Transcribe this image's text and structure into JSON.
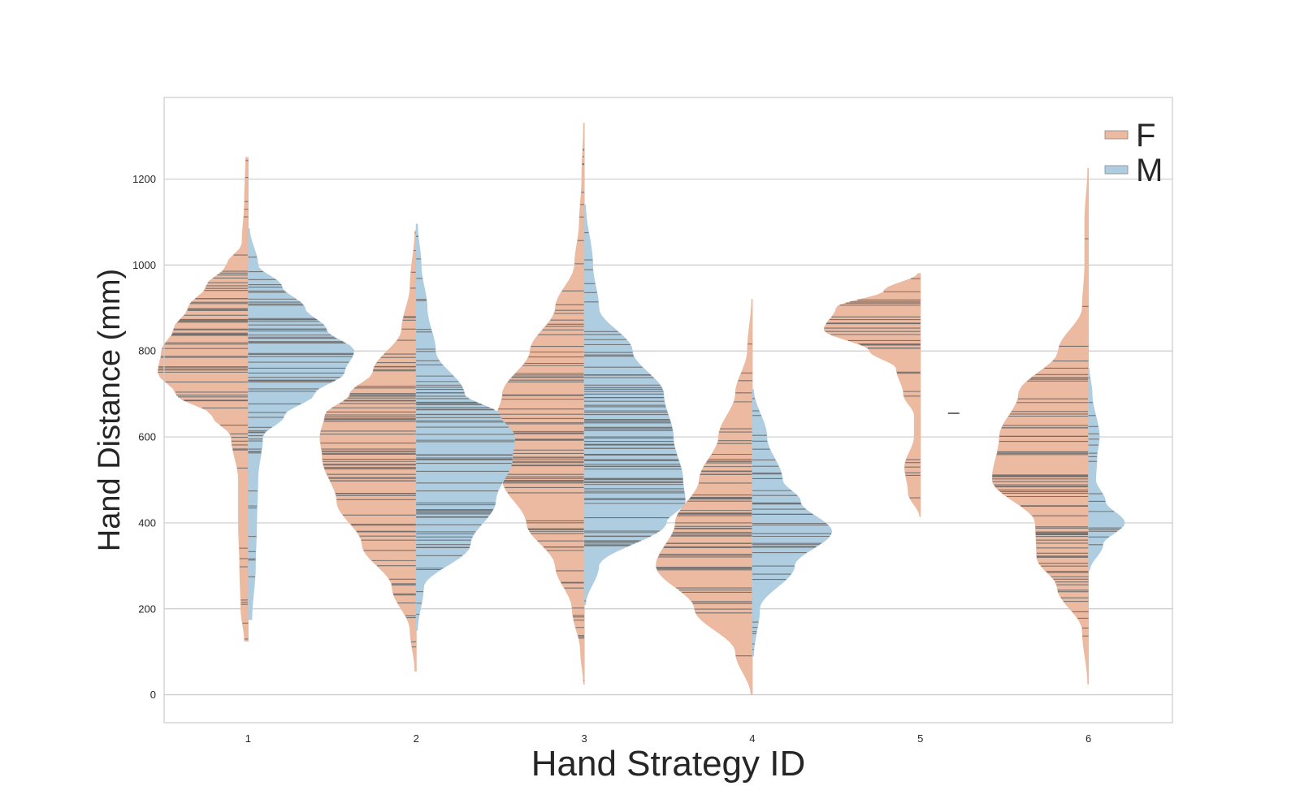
{
  "chart_data": {
    "type": "violin",
    "split": true,
    "inner": "stick",
    "xlabel": "Hand Strategy ID",
    "ylabel": "Hand Distance (mm)",
    "categories": [
      "1",
      "2",
      "3",
      "4",
      "5",
      "6"
    ],
    "y_ticks": [
      0,
      200,
      400,
      600,
      800,
      1000,
      1200
    ],
    "ylim": [
      -65,
      1390
    ],
    "grid": true,
    "legend": {
      "placement": "top-right",
      "entries": [
        "F",
        "M"
      ]
    },
    "colors": {
      "F": "#ecb9a1",
      "M": "#aecde0",
      "stick": "#6b6b6b",
      "grid": "#cccccc",
      "frame": "#cccccc"
    },
    "series": [
      {
        "name": "F",
        "violins": [
          {
            "category": "1",
            "min": 125,
            "max": 1250,
            "profile": [
              [
                125,
                0.03
              ],
              [
                200,
                0.06
              ],
              [
                300,
                0.07
              ],
              [
                400,
                0.08
              ],
              [
                500,
                0.08
              ],
              [
                600,
                0.14
              ],
              [
                650,
                0.3
              ],
              [
                700,
                0.6
              ],
              [
                750,
                0.75
              ],
              [
                800,
                0.72
              ],
              [
                850,
                0.62
              ],
              [
                900,
                0.5
              ],
              [
                950,
                0.35
              ],
              [
                1000,
                0.18
              ],
              [
                1050,
                0.05
              ],
              [
                1150,
                0.03
              ],
              [
                1250,
                0.02
              ]
            ]
          },
          {
            "category": "2",
            "min": 55,
            "max": 1080,
            "profile": [
              [
                55,
                0.01
              ],
              [
                150,
                0.05
              ],
              [
                250,
                0.2
              ],
              [
                350,
                0.45
              ],
              [
                450,
                0.66
              ],
              [
                550,
                0.78
              ],
              [
                600,
                0.8
              ],
              [
                650,
                0.76
              ],
              [
                700,
                0.55
              ],
              [
                750,
                0.36
              ],
              [
                850,
                0.12
              ],
              [
                950,
                0.05
              ],
              [
                1080,
                0.01
              ]
            ]
          },
          {
            "category": "3",
            "min": 25,
            "max": 1330,
            "profile": [
              [
                25,
                0.005
              ],
              [
                100,
                0.03
              ],
              [
                200,
                0.1
              ],
              [
                300,
                0.24
              ],
              [
                400,
                0.48
              ],
              [
                500,
                0.68
              ],
              [
                600,
                0.8
              ],
              [
                700,
                0.68
              ],
              [
                800,
                0.45
              ],
              [
                900,
                0.24
              ],
              [
                1000,
                0.08
              ],
              [
                1100,
                0.04
              ],
              [
                1200,
                0.02
              ],
              [
                1330,
                0.005
              ]
            ]
          },
          {
            "category": "4",
            "min": 0,
            "max": 920,
            "profile": [
              [
                0,
                0.01
              ],
              [
                100,
                0.14
              ],
              [
                200,
                0.48
              ],
              [
                300,
                0.8
              ],
              [
                400,
                0.64
              ],
              [
                500,
                0.44
              ],
              [
                600,
                0.28
              ],
              [
                700,
                0.14
              ],
              [
                800,
                0.04
              ],
              [
                920,
                0.005
              ]
            ]
          },
          {
            "category": "5",
            "min": 415,
            "max": 980,
            "profile": [
              [
                415,
                0.005
              ],
              [
                470,
                0.1
              ],
              [
                530,
                0.13
              ],
              [
                600,
                0.05
              ],
              [
                650,
                0.05
              ],
              [
                700,
                0.14
              ],
              [
                760,
                0.2
              ],
              [
                800,
                0.42
              ],
              [
                850,
                0.8
              ],
              [
                900,
                0.7
              ],
              [
                940,
                0.3
              ],
              [
                980,
                0.02
              ]
            ]
          },
          {
            "category": "6",
            "min": 25,
            "max": 1225,
            "profile": [
              [
                25,
                0.005
              ],
              [
                150,
                0.05
              ],
              [
                250,
                0.26
              ],
              [
                320,
                0.43
              ],
              [
                400,
                0.44
              ],
              [
                500,
                0.8
              ],
              [
                600,
                0.74
              ],
              [
                700,
                0.58
              ],
              [
                800,
                0.25
              ],
              [
                900,
                0.05
              ],
              [
                1000,
                0.03
              ],
              [
                1100,
                0.03
              ],
              [
                1225,
                0.005
              ]
            ]
          }
        ]
      },
      {
        "name": "M",
        "violins": [
          {
            "category": "1",
            "min": 175,
            "max": 1085,
            "profile": [
              [
                175,
                0.03
              ],
              [
                300,
                0.06
              ],
              [
                400,
                0.07
              ],
              [
                500,
                0.08
              ],
              [
                600,
                0.12
              ],
              [
                650,
                0.3
              ],
              [
                700,
                0.55
              ],
              [
                750,
                0.8
              ],
              [
                800,
                0.88
              ],
              [
                850,
                0.65
              ],
              [
                900,
                0.47
              ],
              [
                950,
                0.28
              ],
              [
                1000,
                0.08
              ],
              [
                1085,
                0.01
              ]
            ]
          },
          {
            "category": "2",
            "min": 150,
            "max": 1095,
            "profile": [
              [
                150,
                0.01
              ],
              [
                250,
                0.06
              ],
              [
                350,
                0.45
              ],
              [
                450,
                0.66
              ],
              [
                550,
                0.8
              ],
              [
                600,
                0.82
              ],
              [
                650,
                0.7
              ],
              [
                700,
                0.4
              ],
              [
                800,
                0.16
              ],
              [
                900,
                0.09
              ],
              [
                1000,
                0.04
              ],
              [
                1095,
                0.01
              ]
            ]
          },
          {
            "category": "3",
            "min": 210,
            "max": 1140,
            "profile": [
              [
                210,
                0.01
              ],
              [
                300,
                0.12
              ],
              [
                400,
                0.68
              ],
              [
                450,
                0.84
              ],
              [
                500,
                0.82
              ],
              [
                600,
                0.74
              ],
              [
                700,
                0.66
              ],
              [
                800,
                0.4
              ],
              [
                900,
                0.12
              ],
              [
                1000,
                0.07
              ],
              [
                1140,
                0.01
              ]
            ]
          },
          {
            "category": "4",
            "min": 90,
            "max": 710,
            "profile": [
              [
                90,
                0.01
              ],
              [
                200,
                0.06
              ],
              [
                300,
                0.35
              ],
              [
                380,
                0.66
              ],
              [
                450,
                0.4
              ],
              [
                500,
                0.25
              ],
              [
                600,
                0.12
              ],
              [
                710,
                0.01
              ]
            ]
          },
          {
            "category": "5",
            "min": 655,
            "max": 655,
            "profile": []
          },
          {
            "category": "6",
            "min": 290,
            "max": 760,
            "profile": [
              [
                290,
                0.01
              ],
              [
                350,
                0.12
              ],
              [
                400,
                0.3
              ],
              [
                450,
                0.14
              ],
              [
                500,
                0.06
              ],
              [
                550,
                0.07
              ],
              [
                600,
                0.09
              ],
              [
                700,
                0.03
              ],
              [
                760,
                0.005
              ]
            ]
          }
        ]
      }
    ]
  }
}
